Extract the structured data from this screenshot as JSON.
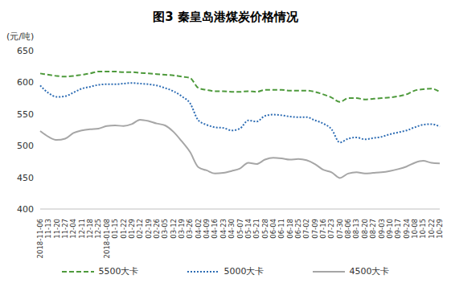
{
  "chart_data": {
    "type": "line",
    "title": "图3 秦皇岛港煤炭价格情况",
    "y_label": "(元/吨)",
    "categories": [
      "2018-11-06",
      "11-13",
      "11-20",
      "11-27",
      "12-04",
      "12-11",
      "12-18",
      "12-25",
      "2018-01-08",
      "01-15",
      "01-22",
      "01-29",
      "02-12",
      "02-19",
      "02-26",
      "03-05",
      "03-12",
      "03-19",
      "03-26",
      "04-02",
      "04-09",
      "04-16",
      "04-23",
      "04-30",
      "05-07",
      "05-14",
      "05-21",
      "05-28",
      "06-04",
      "06-11",
      "06-18",
      "06-25",
      "07-02",
      "07-09",
      "07-16",
      "07-23",
      "07-30",
      "08-06",
      "08-13",
      "08-20",
      "08-27",
      "09-03",
      "09-10",
      "09-17",
      "09-24",
      "10-08",
      "10-15",
      "10-22",
      "10-29"
    ],
    "series": [
      {
        "name": "5500大卡",
        "color": "#4e9a3c",
        "line_style": "dashed",
        "values": [
          614,
          612,
          610,
          609,
          610,
          612,
          614,
          617,
          617,
          617,
          616,
          616,
          615,
          614,
          613,
          612,
          611,
          609,
          607,
          591,
          588,
          586,
          586,
          585,
          585,
          586,
          585,
          588,
          588,
          588,
          587,
          587,
          587,
          585,
          581,
          576,
          569,
          575,
          575,
          573,
          574,
          575,
          576,
          578,
          581,
          587,
          589,
          590,
          585
        ]
      },
      {
        "name": "5000大卡",
        "color": "#2e6db4",
        "line_style": "dotted",
        "values": [
          595,
          583,
          577,
          578,
          584,
          590,
          593,
          596,
          597,
          597,
          598,
          599,
          598,
          597,
          595,
          591,
          586,
          578,
          567,
          540,
          533,
          529,
          528,
          524,
          527,
          540,
          538,
          547,
          549,
          548,
          546,
          545,
          545,
          540,
          535,
          526,
          505,
          511,
          513,
          510,
          512,
          514,
          518,
          521,
          524,
          529,
          533,
          534,
          530
        ]
      },
      {
        "name": "4500大卡",
        "color": "#a6a6a6",
        "line_style": "solid",
        "values": [
          523,
          514,
          509,
          511,
          520,
          524,
          526,
          527,
          531,
          532,
          531,
          534,
          541,
          539,
          535,
          532,
          522,
          507,
          490,
          466,
          461,
          456,
          457,
          460,
          464,
          473,
          471,
          478,
          481,
          480,
          478,
          479,
          477,
          471,
          462,
          458,
          449,
          456,
          458,
          456,
          457,
          458,
          460,
          463,
          467,
          473,
          476,
          473,
          472
        ]
      }
    ],
    "ylim": [
      400,
      650
    ],
    "yticks": [
      400,
      450,
      500,
      550,
      600,
      650
    ],
    "grid": false,
    "legend": "bottom"
  }
}
